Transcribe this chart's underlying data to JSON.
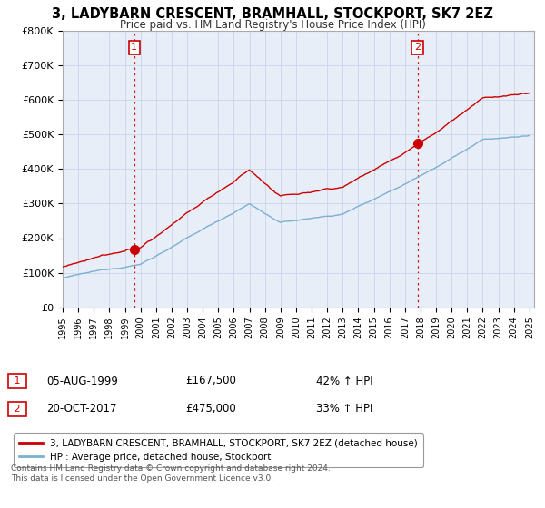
{
  "title": "3, LADYBARN CRESCENT, BRAMHALL, STOCKPORT, SK7 2EZ",
  "subtitle": "Price paid vs. HM Land Registry's House Price Index (HPI)",
  "ylim": [
    0,
    800000
  ],
  "yticks": [
    0,
    100000,
    200000,
    300000,
    400000,
    500000,
    600000,
    700000,
    800000
  ],
  "ytick_labels": [
    "£0",
    "£100K",
    "£200K",
    "£300K",
    "£400K",
    "£500K",
    "£600K",
    "£700K",
    "£800K"
  ],
  "sale1_date": 1999.6,
  "sale1_price": 167500,
  "sale1_label": "1",
  "sale2_date": 2017.8,
  "sale2_price": 475000,
  "sale2_label": "2",
  "property_line_color": "#cc0000",
  "hpi_line_color": "#7bafd4",
  "legend_property": "3, LADYBARN CRESCENT, BRAMHALL, STOCKPORT, SK7 2EZ (detached house)",
  "legend_hpi": "HPI: Average price, detached house, Stockport",
  "annotation1_date": "05-AUG-1999",
  "annotation1_price": "£167,500",
  "annotation1_hpi": "42% ↑ HPI",
  "annotation2_date": "20-OCT-2017",
  "annotation2_price": "£475,000",
  "annotation2_hpi": "33% ↑ HPI",
  "footnote": "Contains HM Land Registry data © Crown copyright and database right 2024.\nThis data is licensed under the Open Government Licence v3.0.",
  "background_color": "#ffffff",
  "plot_bg_color": "#e8eef8"
}
